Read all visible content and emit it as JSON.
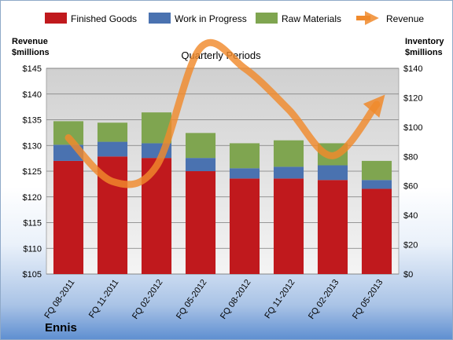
{
  "chart_data": {
    "type": "bar",
    "subtitle": "Quarterly Periods",
    "company": "Ennis",
    "categories": [
      "FQ 08-2011",
      "FQ 11-2011",
      "FQ 02-2012",
      "FQ 05-2012",
      "FQ 08-2012",
      "FQ 11-2012",
      "FQ 02-2013",
      "FQ 05-2013"
    ],
    "stacked": true,
    "series": [
      {
        "name": "Finished Goods",
        "color": "#c0191d",
        "axis": "right",
        "values": [
          77,
          80,
          79,
          70,
          65,
          65,
          64,
          58
        ]
      },
      {
        "name": "Work in Progress",
        "color": "#4a72b0",
        "axis": "right",
        "values": [
          11,
          10,
          10,
          9,
          7,
          8,
          10,
          6
        ]
      },
      {
        "name": "Raw Materials",
        "color": "#7fa550",
        "axis": "right",
        "values": [
          16,
          13,
          21,
          17,
          17,
          18,
          15,
          13
        ]
      }
    ],
    "line_series": {
      "name": "Revenue",
      "color": "#f08a2c",
      "axis": "left",
      "values": [
        131.5,
        123,
        126,
        149,
        145,
        137,
        128,
        138
      ]
    },
    "y_left": {
      "label_line1": "Revenue",
      "label_line2": "$millions",
      "min": 105,
      "max": 145,
      "step": 5,
      "prefix": "$"
    },
    "y_right": {
      "label_line1": "Inventory",
      "label_line2": "$millions",
      "min": 0,
      "max": 140,
      "step": 20,
      "prefix": "$"
    },
    "grid": true,
    "legend_position": "top"
  }
}
